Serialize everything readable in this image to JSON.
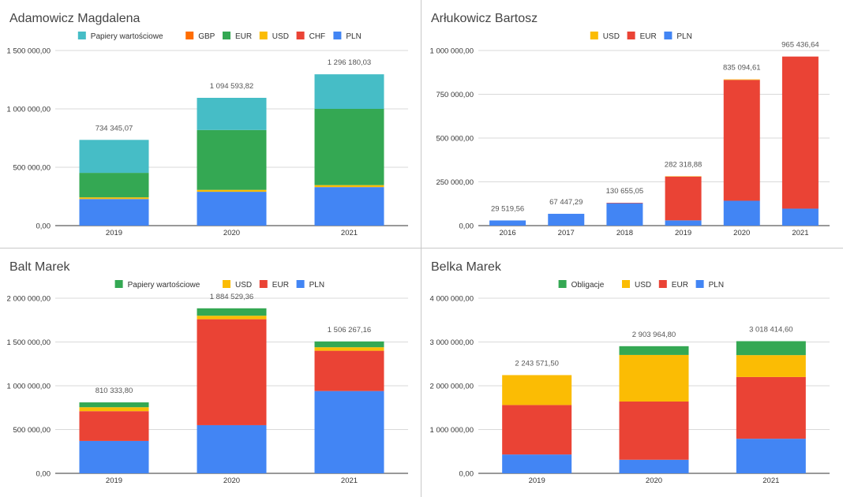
{
  "colors": {
    "PLN": "#4285f4",
    "CHF": "#ea4335",
    "EUR_red": "#ea4335",
    "EUR_green": "#34a853",
    "USD": "#fbbc04",
    "GBP": "#ff6d01",
    "Papiery": "#46bdc6",
    "Obligacje": "#34a853"
  },
  "chart_data": [
    {
      "type": "bar",
      "stacked": true,
      "title": "Adamowicz Magdalena",
      "categories": [
        "2019",
        "2020",
        "2021"
      ],
      "ylim": [
        0,
        1500000
      ],
      "yticks": [
        0,
        500000,
        1000000,
        1500000
      ],
      "ytick_labels": [
        "0,00",
        "500 000,00",
        "1 000 000,00",
        "1 500 000,00"
      ],
      "legend_position": "top",
      "legend_order": [
        "Papiery wartościowe",
        "GBP",
        "EUR",
        "USD",
        "CHF",
        "PLN"
      ],
      "series": [
        {
          "name": "PLN",
          "color": "#4285f4",
          "values": [
            228000,
            290000,
            330000
          ]
        },
        {
          "name": "CHF",
          "color": "#ea4335",
          "values": [
            0,
            0,
            0
          ]
        },
        {
          "name": "USD",
          "color": "#fbbc04",
          "values": [
            14000,
            16000,
            17000
          ]
        },
        {
          "name": "EUR",
          "color": "#34a853",
          "values": [
            210000,
            513000,
            653000
          ]
        },
        {
          "name": "GBP",
          "color": "#ff6d01",
          "values": [
            0,
            0,
            0
          ]
        },
        {
          "name": "Papiery wartościowe",
          "color": "#46bdc6",
          "values": [
            282345.07,
            275593.82,
            296180.03
          ]
        }
      ],
      "totals": [
        734345.07,
        1094593.82,
        1296180.03
      ],
      "total_labels": [
        "734 345,07",
        "1 094 593,82",
        "1 296 180,03"
      ]
    },
    {
      "type": "bar",
      "stacked": true,
      "title": "Arłukowicz Bartosz",
      "categories": [
        "2016",
        "2017",
        "2018",
        "2019",
        "2020",
        "2021"
      ],
      "ylim": [
        0,
        1000000
      ],
      "yticks": [
        0,
        250000,
        500000,
        750000,
        1000000
      ],
      "ytick_labels": [
        "0,00",
        "250 000,00",
        "500 000,00",
        "750 000,00",
        "1 000 000,00"
      ],
      "legend_position": "top",
      "legend_order": [
        "USD",
        "EUR",
        "PLN"
      ],
      "series": [
        {
          "name": "PLN",
          "color": "#4285f4",
          "values": [
            29519.56,
            67447.29,
            128000,
            30000,
            142000,
            97000
          ]
        },
        {
          "name": "EUR",
          "color": "#ea4335",
          "values": [
            0,
            0,
            2655.05,
            250318.88,
            690094.61,
            868436.64
          ]
        },
        {
          "name": "USD",
          "color": "#fbbc04",
          "values": [
            0,
            0,
            0,
            2000,
            3000,
            0
          ]
        }
      ],
      "totals": [
        29519.56,
        67447.29,
        130655.05,
        282318.88,
        835094.61,
        965436.64
      ],
      "total_labels": [
        "29 519,56",
        "67 447,29",
        "130 655,05",
        "282 318,88",
        "835 094,61",
        "965 436,64"
      ]
    },
    {
      "type": "bar",
      "stacked": true,
      "title": "Balt Marek",
      "categories": [
        "2019",
        "2020",
        "2021"
      ],
      "ylim": [
        0,
        2000000
      ],
      "yticks": [
        0,
        500000,
        1000000,
        1500000,
        2000000
      ],
      "ytick_labels": [
        "0,00",
        "500 000,00",
        "1 000 000,00",
        "1 500 000,00",
        "2 000 000,00"
      ],
      "legend_position": "top",
      "legend_order": [
        "Papiery wartościowe",
        "USD",
        "EUR",
        "PLN"
      ],
      "series": [
        {
          "name": "PLN",
          "color": "#4285f4",
          "values": [
            370000,
            550000,
            940000
          ]
        },
        {
          "name": "EUR",
          "color": "#ea4335",
          "values": [
            340000,
            1210000,
            460000
          ]
        },
        {
          "name": "USD",
          "color": "#fbbc04",
          "values": [
            45000,
            40000,
            40000
          ]
        },
        {
          "name": "Papiery wartościowe",
          "color": "#34a853",
          "values": [
            55333.8,
            84529.36,
            66267.16
          ]
        }
      ],
      "totals": [
        810333.8,
        1884529.36,
        1506267.16
      ],
      "total_labels": [
        "810 333,80",
        "1 884 529,36",
        "1 506 267,16"
      ]
    },
    {
      "type": "bar",
      "stacked": true,
      "title": "Belka Marek",
      "categories": [
        "2019",
        "2020",
        "2021"
      ],
      "ylim": [
        0,
        4000000
      ],
      "yticks": [
        0,
        1000000,
        2000000,
        3000000,
        4000000
      ],
      "ytick_labels": [
        "0,00",
        "1 000 000,00",
        "2 000 000,00",
        "3 000 000,00",
        "4 000 000,00"
      ],
      "legend_position": "top",
      "legend_order": [
        "Obligacje",
        "USD",
        "EUR",
        "PLN"
      ],
      "series": [
        {
          "name": "PLN",
          "color": "#4285f4",
          "values": [
            430000,
            310000,
            790000
          ]
        },
        {
          "name": "EUR",
          "color": "#ea4335",
          "values": [
            1130000,
            1330000,
            1410000
          ]
        },
        {
          "name": "USD",
          "color": "#fbbc04",
          "values": [
            683571.5,
            1063964.8,
            500000
          ]
        },
        {
          "name": "Obligacje",
          "color": "#34a853",
          "values": [
            0,
            200000,
            318414.6
          ]
        }
      ],
      "totals": [
        2243571.5,
        2903964.8,
        3018414.6
      ],
      "total_labels": [
        "2 243 571,50",
        "2 903 964,80",
        "3 018 414,60"
      ]
    }
  ]
}
